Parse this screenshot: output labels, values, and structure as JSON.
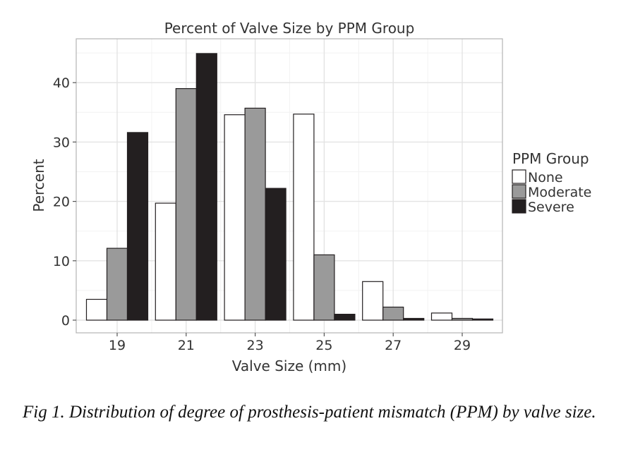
{
  "chart_data": {
    "type": "bar",
    "title": "Percent of Valve Size by PPM Group",
    "xlabel": "Valve Size (mm)",
    "ylabel": "Percent",
    "categories": [
      "19",
      "21",
      "23",
      "25",
      "27",
      "29"
    ],
    "ylim": [
      0,
      45
    ],
    "yticks": [
      0,
      10,
      20,
      30,
      40
    ],
    "grid": true,
    "legend": {
      "title": "PPM Group",
      "position": "right"
    },
    "series": [
      {
        "name": "None",
        "color": "#ffffff",
        "values": [
          3.5,
          19.7,
          34.6,
          34.7,
          6.5,
          1.2
        ]
      },
      {
        "name": "Moderate",
        "color": "#9a9a9a",
        "values": [
          12.1,
          39.0,
          35.7,
          11.0,
          2.2,
          0.3
        ]
      },
      {
        "name": "Severe",
        "color": "#231f20",
        "values": [
          31.6,
          44.9,
          22.2,
          1.0,
          0.3,
          0.2
        ]
      }
    ]
  },
  "caption": "Fig 1.  Distribution of degree of prosthesis-patient mismatch (PPM) by valve size."
}
